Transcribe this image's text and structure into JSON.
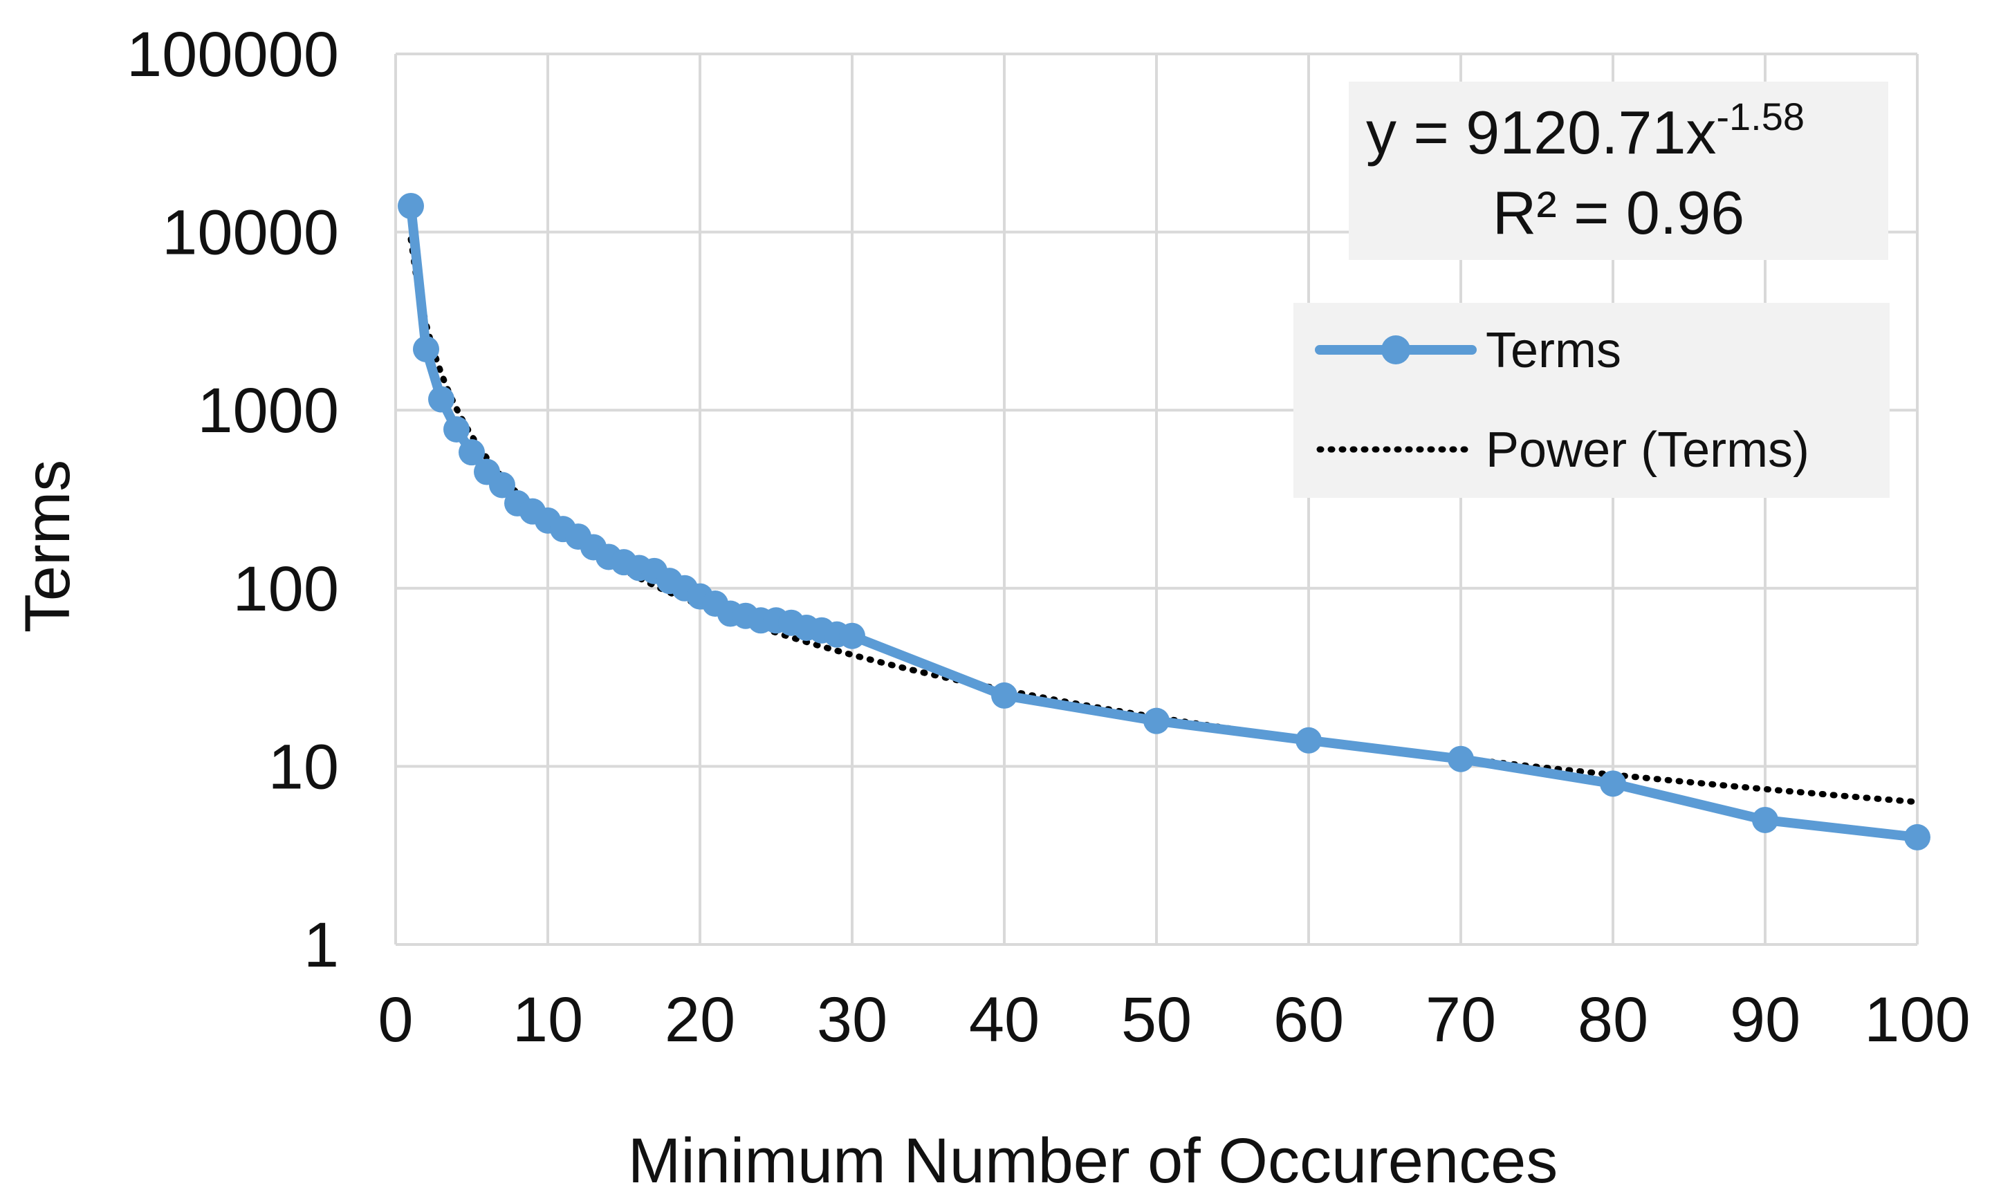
{
  "chart_data": {
    "type": "line",
    "title": "",
    "xlabel": "Minimum Number of Occurences",
    "ylabel": "Terms",
    "xlim": [
      0,
      100
    ],
    "ylim": [
      1,
      100000
    ],
    "yscale": "log",
    "grid": true,
    "x_ticks": [
      "0",
      "10",
      "20",
      "30",
      "40",
      "50",
      "60",
      "70",
      "80",
      "90",
      "100"
    ],
    "y_ticks": [
      "1",
      "10",
      "100",
      "1000",
      "10000",
      "100000"
    ],
    "series": [
      {
        "name": "Terms",
        "color": "#5b9bd5",
        "x": [
          1,
          2,
          3,
          4,
          5,
          6,
          7,
          8,
          9,
          10,
          11,
          12,
          13,
          14,
          15,
          16,
          17,
          18,
          19,
          20,
          21,
          22,
          23,
          24,
          25,
          26,
          27,
          28,
          29,
          30,
          40,
          50,
          60,
          70,
          80,
          90,
          100
        ],
        "values": [
          14000,
          2200,
          1150,
          780,
          580,
          450,
          380,
          300,
          270,
          240,
          215,
          195,
          170,
          150,
          140,
          130,
          125,
          110,
          100,
          90,
          82,
          72,
          70,
          66,
          66,
          64,
          60,
          58,
          55,
          54,
          25,
          18,
          14,
          11,
          8,
          5,
          4
        ]
      }
    ],
    "trendline": {
      "name": "Power (Terms)",
      "type": "power",
      "coefficient": 9120.71,
      "exponent": -1.58,
      "color": "#000000"
    },
    "equation_line1_prefix": "y = 9120.71x",
    "equation_line1_exponent": "-1.58",
    "equation_line2": "R² = 0.96",
    "legend": {
      "placement": "top-right",
      "entries": [
        "Terms",
        "Power (Terms)"
      ]
    }
  }
}
